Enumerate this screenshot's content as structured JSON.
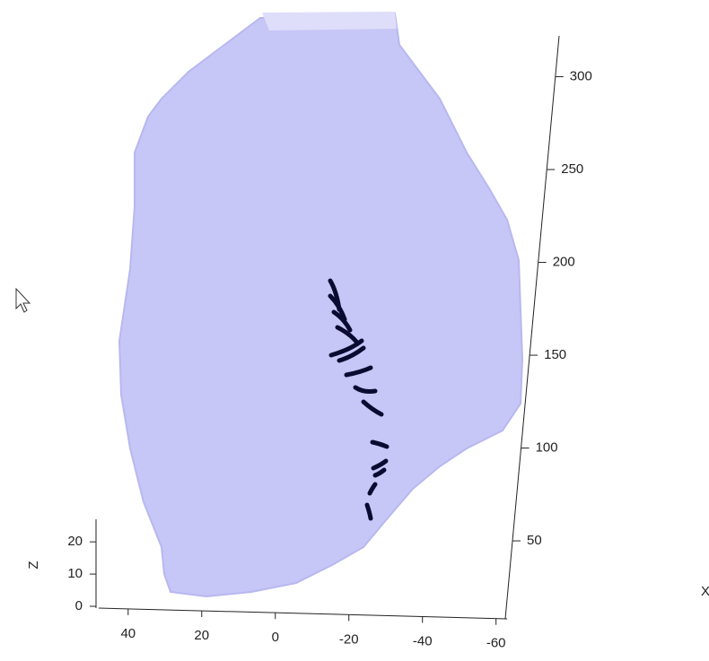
{
  "chart_data": {
    "type": "surface3d",
    "xlabel": "X",
    "zlabel": "Z",
    "xlim": [
      48,
      -63
    ],
    "xticks": [
      40,
      20,
      0,
      -20,
      -40,
      -60
    ],
    "ylim": [
      8,
      322
    ],
    "yticks": [
      50,
      100,
      150,
      200,
      250,
      300
    ],
    "zlim": [
      0,
      27
    ],
    "zticks": [
      0,
      10,
      20
    ]
  }
}
